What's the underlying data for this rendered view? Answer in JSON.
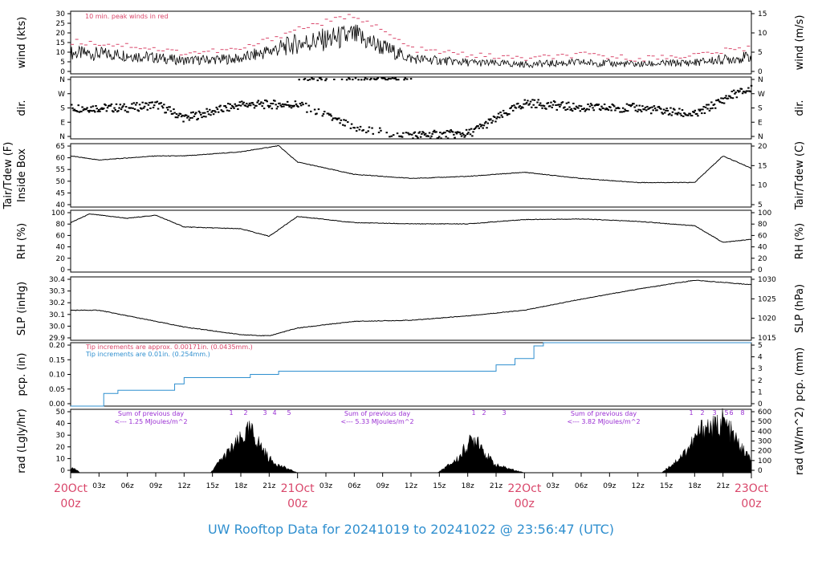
{
  "footer_title": "UW Rooftop Data for 20241019  to  20241022 @ 23:56:47  (UTC)",
  "colors": {
    "red": "#d9466a",
    "blue": "#2f8fcf",
    "purple": "#9a2fd3",
    "black": "#000000"
  },
  "x_axis": {
    "hour_ticks": [
      "03z",
      "06z",
      "09z",
      "12z",
      "15z",
      "18z",
      "21z",
      "03z",
      "06z",
      "09z",
      "12z",
      "15z",
      "18z",
      "21z",
      "03z",
      "06z",
      "09z",
      "12z",
      "15z",
      "18z",
      "21z"
    ],
    "day_labels": [
      {
        "date": "20Oct",
        "hour": "00z"
      },
      {
        "date": "21Oct",
        "hour": "00z"
      },
      {
        "date": "22Oct",
        "hour": "00z"
      },
      {
        "date": "23Oct",
        "hour": "00z"
      }
    ]
  },
  "chart_data": [
    {
      "type": "line",
      "panel": "wind",
      "ylabel_left": "wind (kts)",
      "ylabel_right": "wind (m/s)",
      "left_ticks": [
        "0",
        "5",
        "10",
        "15",
        "20",
        "25",
        "30"
      ],
      "right_ticks": [
        "0",
        "5",
        "10",
        "15"
      ],
      "ylim": [
        0,
        33
      ],
      "annotation": "10 min. peak winds in red",
      "x_hours": [
        0,
        6,
        12,
        18,
        24,
        30,
        36,
        42,
        48,
        54,
        60,
        66,
        72
      ],
      "series": [
        {
          "values": [
            11,
            10,
            7,
            8,
            16,
            20,
            8,
            6,
            5,
            6,
            5,
            6,
            9
          ]
        },
        {
          "values": [
            17,
            15,
            11,
            13,
            24,
            31,
            13,
            10,
            8,
            10,
            8,
            10,
            14
          ]
        }
      ]
    },
    {
      "type": "scatter",
      "panel": "dir",
      "ylabel_left": "dir.",
      "ylabel_right": "dir.",
      "left_ticks": [
        "N",
        "E",
        "S",
        "W",
        "N"
      ],
      "right_ticks": [
        "N",
        "E",
        "S",
        "W",
        "N"
      ],
      "ylim": [
        0,
        360
      ],
      "x_hours": [
        0,
        6,
        9,
        12,
        18,
        24,
        30,
        36,
        42,
        48,
        54,
        60,
        66,
        70,
        72
      ],
      "values": [
        180,
        180,
        200,
        120,
        200,
        200,
        60,
        20,
        30,
        210,
        180,
        180,
        140,
        260,
        290
      ]
    },
    {
      "type": "line",
      "panel": "temp",
      "ylabel_left": [
        "Tair/Tdew (F)",
        "Inside Box"
      ],
      "ylabel_right": "Tair/Tdew (C)",
      "left_ticks": [
        "40",
        "45",
        "50",
        "55",
        "60",
        "65"
      ],
      "right_ticks": [
        "5",
        "10",
        "15",
        "20"
      ],
      "ylim": [
        37,
        68
      ],
      "x_hours": [
        0,
        3,
        6,
        9,
        12,
        18,
        22,
        24,
        30,
        36,
        42,
        48,
        54,
        60,
        66,
        69,
        72
      ],
      "values": [
        62,
        60,
        61,
        62,
        62,
        64,
        67,
        59,
        53,
        51,
        52,
        54,
        51,
        49,
        49,
        62,
        56
      ]
    },
    {
      "type": "line",
      "panel": "rh",
      "ylabel_left": "RH (%)",
      "ylabel_right": "RH (%)",
      "left_ticks": [
        "0",
        "20",
        "40",
        "60",
        "80",
        "100"
      ],
      "right_ticks": [
        "0",
        "20",
        "40",
        "60",
        "80",
        "100"
      ],
      "ylim": [
        0,
        100
      ],
      "x_hours": [
        0,
        2,
        6,
        9,
        12,
        18,
        21,
        24,
        30,
        36,
        42,
        48,
        54,
        60,
        66,
        69,
        72
      ],
      "values": [
        80,
        94,
        87,
        92,
        73,
        70,
        58,
        90,
        80,
        78,
        78,
        85,
        86,
        82,
        75,
        48,
        53
      ]
    },
    {
      "type": "line",
      "panel": "slp",
      "ylabel_left": "SLP (inHg)",
      "ylabel_right": "SLP (hPa)",
      "left_ticks": [
        "29.9",
        "30.0",
        "30.1",
        "30.2",
        "30.3",
        "30.4"
      ],
      "right_ticks": [
        "1015",
        "1020",
        "1025",
        "1030"
      ],
      "ylim": [
        29.87,
        30.44
      ],
      "x_hours": [
        0,
        3,
        6,
        12,
        18,
        21,
        24,
        30,
        36,
        42,
        48,
        54,
        60,
        66,
        69,
        72
      ],
      "values": [
        30.14,
        30.14,
        30.09,
        29.99,
        29.92,
        29.91,
        29.98,
        30.04,
        30.05,
        30.09,
        30.14,
        30.24,
        30.33,
        30.41,
        30.39,
        30.37
      ]
    },
    {
      "type": "line",
      "panel": "pcp",
      "ylabel_left": "pcp. (in)",
      "ylabel_right": "pcp. (mm)",
      "left_ticks": [
        "0.00",
        "0.05",
        "0.10",
        "0.15",
        "0.20"
      ],
      "right_ticks": [
        "0",
        "1",
        "2",
        "3",
        "4",
        "5"
      ],
      "ylim": [
        0,
        0.2
      ],
      "notes": [
        "Tip increments are approx. 0.00171in. (0.0435mm.)",
        "Tip increments are 0.01in. (0.254mm.)"
      ],
      "x_hours": [
        0,
        2.5,
        3.5,
        5,
        10,
        11,
        12,
        15,
        19,
        22,
        28,
        34,
        44.5,
        45,
        47,
        49,
        50,
        72
      ],
      "values": [
        0,
        0,
        0.04,
        0.05,
        0.05,
        0.07,
        0.09,
        0.09,
        0.1,
        0.11,
        0.11,
        0.11,
        0.11,
        0.13,
        0.15,
        0.19,
        0.2,
        0.2
      ]
    },
    {
      "type": "area",
      "panel": "rad",
      "ylabel_left": "rad (Lgly/hr)",
      "ylabel_right": "rad (W/m^2)",
      "left_ticks": [
        "0",
        "10",
        "20",
        "30",
        "40",
        "50"
      ],
      "right_ticks": [
        "0",
        "100",
        "200",
        "300",
        "400",
        "500",
        "600"
      ],
      "ylim": [
        0,
        52
      ],
      "daily_sums": [
        "Sum of previous day\n<--- 1.25 MJoules/m^2",
        "Sum of previous day\n<--- 5.33 MJoules/m^2",
        "Sum of previous day\n<--- 3.82 MJoules/m^2"
      ],
      "markers": [
        [
          "1",
          "2",
          "3",
          "4",
          "5"
        ],
        [
          "1",
          "2",
          "3"
        ],
        [
          "1",
          "2",
          "3",
          "5",
          "6",
          "8"
        ]
      ],
      "x_hours": [
        0,
        0.5,
        1,
        14.8,
        16,
        17,
        18,
        19,
        20,
        21,
        22,
        24,
        38.8,
        40,
        41,
        42,
        43,
        44,
        45,
        48,
        62.5,
        64,
        65,
        66,
        67,
        68,
        69,
        70,
        71,
        72
      ],
      "values": [
        5,
        4,
        0,
        0,
        15,
        25,
        35,
        45,
        30,
        15,
        8,
        0,
        0,
        8,
        15,
        30,
        38,
        18,
        8,
        0,
        0,
        12,
        22,
        35,
        50,
        47,
        55,
        40,
        25,
        14
      ]
    }
  ]
}
